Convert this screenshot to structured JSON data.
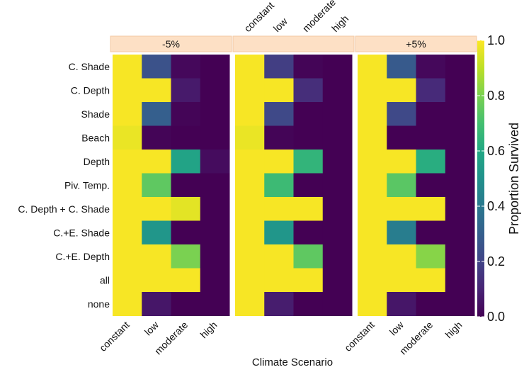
{
  "chart_data": {
    "type": "heatmap",
    "xlabel": "Climate Scenario",
    "x_categories": [
      "constant",
      "low",
      "moderate",
      "high"
    ],
    "y_categories": [
      "C. Shade",
      "C. Depth",
      "Shade",
      "Beach",
      "Depth",
      "Piv. Temp.",
      "C. Depth + C. Shade",
      "C.+E. Shade",
      "C.+E. Depth",
      "all",
      "none"
    ],
    "panels": [
      {
        "label": "-5%",
        "values": [
          [
            0.99,
            0.25,
            0.02,
            0.0
          ],
          [
            0.99,
            0.99,
            0.07,
            0.0
          ],
          [
            0.99,
            0.3,
            0.01,
            0.0
          ],
          [
            0.97,
            0.01,
            0.0,
            0.0
          ],
          [
            0.99,
            0.99,
            0.58,
            0.03
          ],
          [
            0.99,
            0.75,
            0.0,
            0.0
          ],
          [
            0.99,
            0.99,
            0.96,
            0.0
          ],
          [
            0.99,
            0.52,
            0.0,
            0.0
          ],
          [
            0.99,
            0.99,
            0.8,
            0.0
          ],
          [
            0.99,
            0.99,
            0.99,
            0.0
          ],
          [
            0.99,
            0.06,
            0.0,
            0.0
          ]
        ]
      },
      {
        "label": "",
        "values": [
          [
            0.99,
            0.18,
            0.01,
            0.0
          ],
          [
            0.99,
            0.99,
            0.13,
            0.0
          ],
          [
            0.99,
            0.22,
            0.0,
            0.0
          ],
          [
            0.97,
            0.01,
            0.0,
            0.0
          ],
          [
            0.99,
            0.99,
            0.65,
            0.0
          ],
          [
            0.99,
            0.68,
            0.0,
            0.0
          ],
          [
            0.99,
            0.99,
            0.99,
            0.0
          ],
          [
            0.99,
            0.52,
            0.0,
            0.0
          ],
          [
            0.99,
            0.99,
            0.75,
            0.0
          ],
          [
            0.99,
            0.99,
            0.99,
            0.0
          ],
          [
            0.99,
            0.08,
            0.0,
            0.0
          ]
        ]
      },
      {
        "label": "+5%",
        "values": [
          [
            0.99,
            0.28,
            0.02,
            0.0
          ],
          [
            0.99,
            0.99,
            0.12,
            0.0
          ],
          [
            0.99,
            0.22,
            0.0,
            0.0
          ],
          [
            0.99,
            0.0,
            0.0,
            0.0
          ],
          [
            0.99,
            0.99,
            0.62,
            0.0
          ],
          [
            0.99,
            0.74,
            0.0,
            0.0
          ],
          [
            0.99,
            0.99,
            0.99,
            0.0
          ],
          [
            0.99,
            0.42,
            0.0,
            0.0
          ],
          [
            0.99,
            0.99,
            0.82,
            0.0
          ],
          [
            0.99,
            0.99,
            0.99,
            0.0
          ],
          [
            0.99,
            0.06,
            0.0,
            0.0
          ]
        ]
      }
    ],
    "colorbar": {
      "title": "Proportion Survived",
      "range": [
        0.0,
        1.0
      ],
      "ticks": [
        "0.0",
        "0.2",
        "0.4",
        "0.6",
        "0.8",
        "1.0"
      ],
      "colormap": "viridis"
    },
    "x_tick_labels_top_panel": "middle",
    "x_tick_labels_bottom_panels": [
      "left",
      "right"
    ],
    "colors": {
      "strip_background": "#fde0c5",
      "strip_border": "#f3c9a3",
      "panel_border": "#ffffff"
    }
  }
}
